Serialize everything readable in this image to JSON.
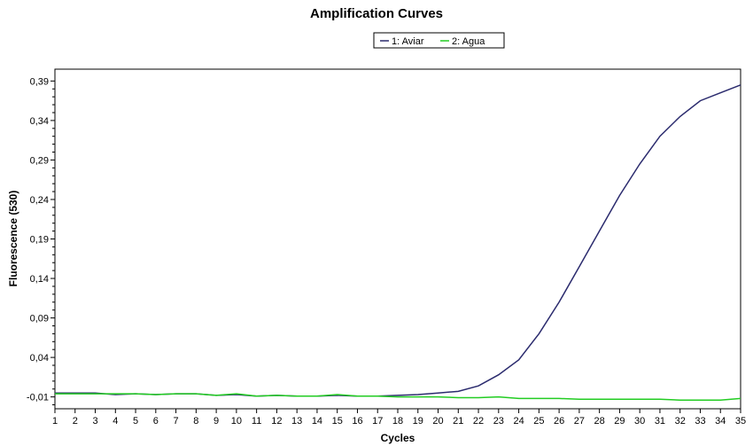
{
  "chart_data": {
    "type": "line",
    "title": "Amplification Curves",
    "xlabel": "Cycles",
    "ylabel": "Fluorescence (530)",
    "xlim": [
      1,
      35
    ],
    "ylim": [
      -0.025,
      0.405
    ],
    "x_ticks": [
      "1",
      "2",
      "3",
      "4",
      "5",
      "6",
      "7",
      "8",
      "9",
      "10",
      "11",
      "12",
      "13",
      "14",
      "15",
      "16",
      "17",
      "18",
      "19",
      "20",
      "21",
      "22",
      "23",
      "24",
      "25",
      "26",
      "27",
      "28",
      "29",
      "30",
      "31",
      "32",
      "33",
      "34",
      "35"
    ],
    "y_ticks": [
      "-0,01",
      "0,04",
      "0,09",
      "0,14",
      "0,19",
      "0,24",
      "0,29",
      "0,34",
      "0,39"
    ],
    "y_tick_values": [
      -0.01,
      0.04,
      0.09,
      0.14,
      0.19,
      0.24,
      0.29,
      0.34,
      0.39
    ],
    "grid": false,
    "legend_position": "top-center",
    "x": [
      1,
      2,
      3,
      4,
      5,
      6,
      7,
      8,
      9,
      10,
      11,
      12,
      13,
      14,
      15,
      16,
      17,
      18,
      19,
      20,
      21,
      22,
      23,
      24,
      25,
      26,
      27,
      28,
      29,
      30,
      31,
      32,
      33,
      34,
      35
    ],
    "series": [
      {
        "name": "1: Aviar",
        "color": "#2b2b6e",
        "values": [
          -0.005,
          -0.005,
          -0.005,
          -0.007,
          -0.006,
          -0.007,
          -0.006,
          -0.006,
          -0.008,
          -0.007,
          -0.009,
          -0.008,
          -0.009,
          -0.009,
          -0.008,
          -0.009,
          -0.009,
          -0.008,
          -0.007,
          -0.005,
          -0.003,
          0.004,
          0.018,
          0.037,
          0.07,
          0.11,
          0.155,
          0.2,
          0.245,
          0.285,
          0.32,
          0.345,
          0.365,
          0.375,
          0.385
        ]
      },
      {
        "name": "2: Agua",
        "color": "#22cc22",
        "values": [
          -0.006,
          -0.006,
          -0.006,
          -0.006,
          -0.006,
          -0.007,
          -0.006,
          -0.006,
          -0.008,
          -0.006,
          -0.009,
          -0.008,
          -0.009,
          -0.009,
          -0.007,
          -0.009,
          -0.009,
          -0.01,
          -0.01,
          -0.01,
          -0.011,
          -0.011,
          -0.01,
          -0.012,
          -0.012,
          -0.012,
          -0.013,
          -0.013,
          -0.013,
          -0.013,
          -0.013,
          -0.014,
          -0.014,
          -0.014,
          -0.012
        ]
      }
    ]
  }
}
